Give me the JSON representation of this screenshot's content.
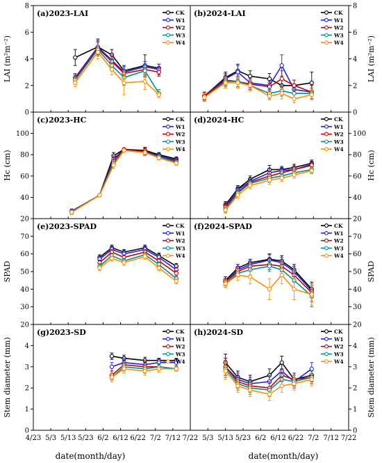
{
  "chart_data": [
    {
      "id": "a",
      "type": "line",
      "title": "(a)2023-LAI",
      "ylabel": "LAI (m²m⁻²)",
      "ylim": [
        0,
        8
      ],
      "y_ticks": [
        0,
        2,
        4,
        6,
        8
      ],
      "xlim": [
        "4/23",
        "7/22"
      ],
      "x_ticks": [
        "4/23",
        "5/3",
        "5/13",
        "5/23",
        "6/2",
        "6/12",
        "6/22",
        "7/2",
        "7/12",
        "7/22"
      ],
      "x": [
        "5/17",
        "5/30",
        "6/7",
        "6/14",
        "6/26",
        "7/4"
      ],
      "series": [
        {
          "name": "CK",
          "color": "#000000",
          "values": [
            4.1,
            4.9,
            4.3,
            3.1,
            3.5,
            3.3
          ],
          "err": [
            0.6,
            0.5,
            0.4,
            0.4,
            0.8,
            0.3
          ]
        },
        {
          "name": "W1",
          "color": "#1f1fe0",
          "values": [
            2.6,
            4.9,
            3.9,
            3.0,
            3.4,
            3.2
          ],
          "err": [
            0.3,
            0.6,
            0.4,
            0.4,
            0.4,
            0.4
          ]
        },
        {
          "name": "W2",
          "color": "#c00000",
          "values": [
            2.5,
            4.8,
            3.8,
            2.9,
            3.2,
            3.0
          ],
          "err": [
            0.3,
            0.5,
            0.4,
            0.3,
            0.4,
            0.3
          ]
        },
        {
          "name": "W3",
          "color": "#008b8b",
          "values": [
            2.4,
            4.7,
            3.5,
            2.6,
            3.1,
            1.4
          ],
          "err": [
            0.3,
            0.5,
            0.4,
            0.6,
            0.5,
            0.3
          ]
        },
        {
          "name": "W4",
          "color": "#ff8c00",
          "values": [
            2.2,
            4.5,
            3.2,
            2.2,
            2.3,
            1.3
          ],
          "err": [
            0.3,
            0.5,
            0.4,
            0.9,
            0.6,
            0.2
          ]
        }
      ]
    },
    {
      "id": "b",
      "type": "line",
      "title": "(b)2024-LAI",
      "ylabel": "LAI (m²m⁻²)",
      "ylim": [
        0,
        8
      ],
      "y_ticks": [
        0,
        2,
        4,
        6,
        8
      ],
      "xlim": [
        "4/23",
        "7/22"
      ],
      "x_ticks": [
        "4/23",
        "5/3",
        "5/13",
        "5/23",
        "6/2",
        "6/12",
        "6/22",
        "7/2",
        "7/12",
        "7/22"
      ],
      "x": [
        "5/1",
        "5/13",
        "5/20",
        "5/27",
        "6/7",
        "6/14",
        "6/21",
        "7/1"
      ],
      "series": [
        {
          "name": "CK",
          "color": "#000000",
          "values": [
            1.2,
            2.6,
            3.1,
            2.7,
            2.5,
            2.0,
            2.0,
            2.2
          ],
          "err": [
            0.3,
            0.4,
            0.5,
            0.4,
            0.4,
            0.5,
            0.4,
            0.8
          ]
        },
        {
          "name": "W1",
          "color": "#1f1fe0",
          "values": [
            1.2,
            2.5,
            3.0,
            2.2,
            2.0,
            3.5,
            1.7,
            1.5
          ],
          "err": [
            0.3,
            0.4,
            0.5,
            0.4,
            0.3,
            0.8,
            0.4,
            0.5
          ]
        },
        {
          "name": "W2",
          "color": "#c00000",
          "values": [
            1.2,
            2.4,
            2.3,
            2.1,
            1.9,
            2.5,
            2.0,
            1.5
          ],
          "err": [
            0.3,
            0.4,
            0.4,
            0.4,
            0.3,
            0.6,
            0.4,
            0.5
          ]
        },
        {
          "name": "W3",
          "color": "#008b8b",
          "values": [
            1.1,
            2.3,
            2.3,
            2.0,
            1.4,
            1.6,
            1.4,
            1.4
          ],
          "err": [
            0.3,
            0.4,
            0.4,
            0.4,
            0.4,
            0.4,
            0.3,
            0.4
          ]
        },
        {
          "name": "W4",
          "color": "#ff8c00",
          "values": [
            1.1,
            2.2,
            2.2,
            2.0,
            1.2,
            1.4,
            1.0,
            1.3
          ],
          "err": [
            0.3,
            0.4,
            0.4,
            0.4,
            0.3,
            0.4,
            0.3,
            0.4
          ]
        }
      ]
    },
    {
      "id": "c",
      "type": "line",
      "title": "(c)2023-HC",
      "ylabel": "Hc (cm)",
      "ylim": [
        20,
        120
      ],
      "y_ticks": [
        20,
        40,
        60,
        80,
        100,
        120
      ],
      "xlim": [
        "4/23",
        "7/22"
      ],
      "x_ticks": [
        "4/23",
        "5/3",
        "5/13",
        "5/23",
        "6/2",
        "6/12",
        "6/22",
        "7/2",
        "7/12",
        "7/22"
      ],
      "x": [
        "5/15",
        "5/31",
        "6/8",
        "6/14",
        "6/26",
        "7/4",
        "7/14"
      ],
      "series": [
        {
          "name": "CK",
          "color": "#000000",
          "values": [
            27,
            42,
            79,
            85,
            84,
            80,
            76
          ],
          "err": [
            2,
            1,
            3,
            1,
            3,
            2,
            2
          ]
        },
        {
          "name": "W1",
          "color": "#1f1fe0",
          "values": [
            27,
            42,
            76,
            85,
            83,
            79,
            75
          ],
          "err": [
            2,
            1,
            3,
            1,
            3,
            2,
            2
          ]
        },
        {
          "name": "W2",
          "color": "#c00000",
          "values": [
            26,
            42,
            74,
            85,
            83,
            78,
            74
          ],
          "err": [
            2,
            1,
            3,
            1,
            3,
            2,
            2
          ]
        },
        {
          "name": "W3",
          "color": "#008b8b",
          "values": [
            26,
            42,
            72,
            84,
            82,
            78,
            73
          ],
          "err": [
            2,
            1,
            3,
            1,
            3,
            2,
            2
          ]
        },
        {
          "name": "W4",
          "color": "#ff8c00",
          "values": [
            26,
            42,
            70,
            84,
            82,
            77,
            72
          ],
          "err": [
            2,
            1,
            3,
            1,
            3,
            2,
            2
          ]
        }
      ]
    },
    {
      "id": "d",
      "type": "line",
      "title": "(d)2024-HC",
      "ylabel": "Hc (cm)",
      "ylim": [
        20,
        120
      ],
      "y_ticks": [
        20,
        40,
        60,
        80,
        100,
        120
      ],
      "xlim": [
        "4/23",
        "7/22"
      ],
      "x_ticks": [
        "4/23",
        "5/3",
        "5/13",
        "5/23",
        "6/2",
        "6/12",
        "6/22",
        "7/2",
        "7/12",
        "7/22"
      ],
      "x": [
        "5/13",
        "5/20",
        "5/27",
        "6/7",
        "6/14",
        "6/21",
        "7/1"
      ],
      "series": [
        {
          "name": "CK",
          "color": "#000000",
          "values": [
            33,
            48,
            57,
            66,
            66,
            68,
            72
          ],
          "err": [
            3,
            3,
            3,
            4,
            3,
            3,
            3
          ]
        },
        {
          "name": "W1",
          "color": "#1f1fe0",
          "values": [
            32,
            47,
            55,
            63,
            65,
            66,
            71
          ],
          "err": [
            3,
            3,
            3,
            4,
            3,
            3,
            3
          ]
        },
        {
          "name": "W2",
          "color": "#c00000",
          "values": [
            31,
            45,
            54,
            60,
            63,
            66,
            70
          ],
          "err": [
            3,
            3,
            3,
            4,
            3,
            3,
            3
          ]
        },
        {
          "name": "W3",
          "color": "#008b8b",
          "values": [
            29,
            44,
            53,
            58,
            60,
            63,
            66
          ],
          "err": [
            3,
            3,
            3,
            4,
            3,
            3,
            3
          ]
        },
        {
          "name": "W4",
          "color": "#ff8c00",
          "values": [
            28,
            42,
            51,
            56,
            58,
            61,
            65
          ],
          "err": [
            3,
            3,
            3,
            4,
            3,
            3,
            3
          ]
        }
      ]
    },
    {
      "id": "e",
      "type": "line",
      "title": "(e)2023-SPAD",
      "ylabel": "SPAD",
      "ylim": [
        20,
        80
      ],
      "y_ticks": [
        20,
        30,
        40,
        50,
        60,
        70,
        80
      ],
      "xlim": [
        "4/23",
        "7/22"
      ],
      "x_ticks": [
        "4/23",
        "5/3",
        "5/13",
        "5/23",
        "6/2",
        "6/12",
        "6/22",
        "7/2",
        "7/12",
        "7/22"
      ],
      "x": [
        "5/31",
        "6/7",
        "6/14",
        "6/26",
        "7/4",
        "7/14"
      ],
      "series": [
        {
          "name": "CK",
          "color": "#000000",
          "values": [
            58,
            63.5,
            61,
            63.5,
            59,
            53
          ],
          "err": [
            1.5,
            1.5,
            1.5,
            1.5,
            1.5,
            1.5
          ]
        },
        {
          "name": "W1",
          "color": "#1f1fe0",
          "values": [
            57,
            62.5,
            60,
            62.5,
            58,
            51
          ],
          "err": [
            1.5,
            1.5,
            1.5,
            1.5,
            1.5,
            1.5
          ]
        },
        {
          "name": "W2",
          "color": "#c00000",
          "values": [
            55,
            61,
            58,
            61,
            56,
            49
          ],
          "err": [
            1.5,
            1.5,
            1.5,
            1.5,
            1.5,
            1.5
          ]
        },
        {
          "name": "W3",
          "color": "#008b8b",
          "values": [
            53,
            59,
            56,
            59.5,
            54,
            46
          ],
          "err": [
            1.5,
            1.5,
            1.5,
            1.5,
            1.5,
            1.5
          ]
        },
        {
          "name": "W4",
          "color": "#ff8c00",
          "values": [
            52,
            57.5,
            55,
            58.5,
            52,
            44.5
          ],
          "err": [
            1.5,
            1.5,
            1.5,
            1.5,
            1.5,
            1.5
          ]
        }
      ]
    },
    {
      "id": "f",
      "type": "line",
      "title": "(f)2024-SPAD",
      "ylabel": "SPAD",
      "ylim": [
        20,
        80
      ],
      "y_ticks": [
        20,
        30,
        40,
        50,
        60,
        70,
        80
      ],
      "xlim": [
        "4/23",
        "7/22"
      ],
      "x_ticks": [
        "4/23",
        "5/3",
        "5/13",
        "5/23",
        "6/2",
        "6/12",
        "6/22",
        "7/2",
        "7/12",
        "7/22"
      ],
      "x": [
        "5/13",
        "5/20",
        "5/27",
        "6/7",
        "6/14",
        "6/21",
        "7/1"
      ],
      "series": [
        {
          "name": "CK",
          "color": "#000000",
          "values": [
            45,
            52,
            55,
            57,
            56,
            51,
            40
          ],
          "err": [
            2,
            2,
            2,
            3,
            3,
            3,
            4
          ]
        },
        {
          "name": "W1",
          "color": "#1f1fe0",
          "values": [
            44,
            51,
            54,
            56.5,
            55,
            50,
            39
          ],
          "err": [
            2,
            2,
            2,
            3,
            3,
            3,
            4
          ]
        },
        {
          "name": "W2",
          "color": "#c00000",
          "values": [
            44,
            50,
            53,
            54,
            53,
            48,
            38
          ],
          "err": [
            2,
            2,
            2,
            3,
            3,
            4,
            5
          ]
        },
        {
          "name": "W3",
          "color": "#008b8b",
          "values": [
            43,
            49,
            51,
            53,
            51,
            45,
            36
          ],
          "err": [
            2,
            2,
            3,
            3,
            4,
            5,
            6
          ]
        },
        {
          "name": "W4",
          "color": "#ff8c00",
          "values": [
            43,
            48,
            47,
            40,
            48,
            40,
            37
          ],
          "err": [
            2,
            3,
            4,
            6,
            5,
            6,
            6
          ]
        }
      ]
    },
    {
      "id": "g",
      "type": "line",
      "title": "(g)2023-SD",
      "ylabel": "Stem diameter (mm)",
      "ylim": [
        0,
        5
      ],
      "y_ticks": [
        0,
        1,
        2,
        3,
        4,
        5
      ],
      "xlim": [
        "4/23",
        "7/22"
      ],
      "x_ticks": [
        "4/23",
        "5/3",
        "5/13",
        "5/23",
        "6/2",
        "6/12",
        "6/22",
        "7/2",
        "7/12",
        "7/22"
      ],
      "x": [
        "6/7",
        "6/14",
        "6/26",
        "7/4",
        "7/14"
      ],
      "series": [
        {
          "name": "CK",
          "color": "#000000",
          "values": [
            3.5,
            3.4,
            3.3,
            3.3,
            3.3
          ],
          "err": [
            0.15,
            0.15,
            0.15,
            0.1,
            0.1
          ]
        },
        {
          "name": "W1",
          "color": "#1f1fe0",
          "values": [
            3.0,
            3.2,
            3.1,
            3.2,
            3.2
          ],
          "err": [
            0.2,
            0.2,
            0.2,
            0.15,
            0.15
          ]
        },
        {
          "name": "W2",
          "color": "#c00000",
          "values": [
            2.6,
            3.1,
            3.0,
            3.0,
            2.9
          ],
          "err": [
            0.2,
            0.2,
            0.2,
            0.15,
            0.1
          ]
        },
        {
          "name": "W3",
          "color": "#008b8b",
          "values": [
            2.5,
            3.0,
            2.9,
            3.0,
            2.9
          ],
          "err": [
            0.2,
            0.2,
            0.2,
            0.15,
            0.1
          ]
        },
        {
          "name": "W4",
          "color": "#ff8c00",
          "values": [
            2.5,
            2.9,
            2.8,
            2.9,
            2.9
          ],
          "err": [
            0.2,
            0.2,
            0.2,
            0.15,
            0.1
          ]
        }
      ]
    },
    {
      "id": "h",
      "type": "line",
      "title": "(h)2024-SD",
      "ylabel": "Stem diameter (mm)",
      "ylim": [
        0,
        5
      ],
      "y_ticks": [
        0,
        1,
        2,
        3,
        4,
        5
      ],
      "xlim": [
        "4/23",
        "7/22"
      ],
      "x_ticks": [
        "4/23",
        "5/3",
        "5/13",
        "5/23",
        "6/2",
        "6/12",
        "6/22",
        "7/2",
        "7/12",
        "7/22"
      ],
      "x": [
        "5/13",
        "5/20",
        "5/27",
        "6/7",
        "6/14",
        "6/21",
        "7/1"
      ],
      "series": [
        {
          "name": "CK",
          "color": "#000000",
          "values": [
            3.2,
            2.5,
            2.3,
            2.6,
            3.2,
            2.4,
            2.6
          ],
          "err": [
            0.4,
            0.3,
            0.3,
            0.3,
            0.3,
            0.3,
            0.3
          ]
        },
        {
          "name": "W1",
          "color": "#1f1fe0",
          "values": [
            3.0,
            2.4,
            2.2,
            2.3,
            2.8,
            2.3,
            2.9
          ],
          "err": [
            0.4,
            0.3,
            0.3,
            0.3,
            0.3,
            0.3,
            0.3
          ]
        },
        {
          "name": "W2",
          "color": "#c00000",
          "values": [
            3.0,
            2.3,
            2.1,
            2.0,
            2.6,
            2.4,
            2.5
          ],
          "err": [
            0.4,
            0.3,
            0.3,
            0.3,
            0.3,
            0.3,
            0.3
          ]
        },
        {
          "name": "W3",
          "color": "#008b8b",
          "values": [
            2.9,
            2.2,
            2.0,
            1.9,
            2.4,
            2.3,
            2.5
          ],
          "err": [
            0.4,
            0.3,
            0.3,
            0.3,
            0.3,
            0.3,
            0.3
          ]
        },
        {
          "name": "W4",
          "color": "#ff8c00",
          "values": [
            2.8,
            2.1,
            1.9,
            1.7,
            2.1,
            2.2,
            2.4
          ],
          "err": [
            0.4,
            0.3,
            0.3,
            0.3,
            0.3,
            0.3,
            0.3
          ]
        }
      ]
    }
  ],
  "xlabel": "date(month/day)"
}
